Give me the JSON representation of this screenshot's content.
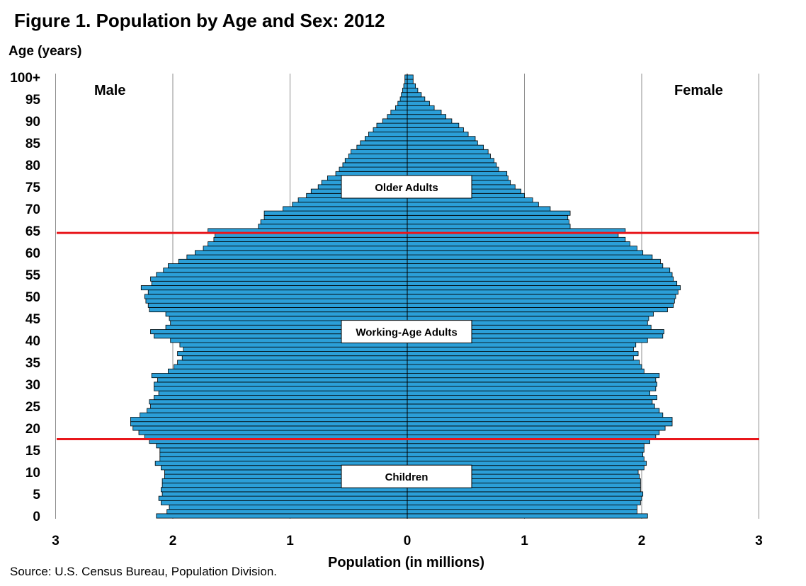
{
  "title": "Figure 1. Population by Age and Sex: 2012",
  "source": "Source: U.S. Census Bureau, Population Division.",
  "colors": {
    "bar": "#2b9fd8",
    "bar_stroke": "#000000",
    "divider": "#e8161b",
    "grid": "#8c8c8c"
  },
  "chart_data": {
    "type": "bar",
    "orientation": "horizontal",
    "subtype": "population-pyramid",
    "title": "Figure 1. Population by Age and Sex: 2012",
    "xlabel": "Population (in millions)",
    "ylabel": "Age (years)",
    "xlim": [
      -3,
      3
    ],
    "ylim": [
      0,
      100
    ],
    "grid": "vertical gridlines at 1-million intervals",
    "x_ticks": [
      "3",
      "2",
      "1",
      "0",
      "1",
      "2",
      "3"
    ],
    "y_ticks": [
      "0",
      "5",
      "10",
      "15",
      "20",
      "25",
      "30",
      "35",
      "40",
      "45",
      "50",
      "55",
      "60",
      "65",
      "70",
      "75",
      "80",
      "85",
      "90",
      "95",
      "100+"
    ],
    "side_labels": {
      "left": "Male",
      "right": "Female"
    },
    "age_groups": [
      {
        "label": "Older Adults",
        "age": 75
      },
      {
        "label": "Working-Age Adults",
        "age": 42
      },
      {
        "label": "Children",
        "age": 9
      }
    ],
    "reference_lines": [
      64.5,
      17.5
    ],
    "ages": [
      0,
      1,
      2,
      3,
      4,
      5,
      6,
      7,
      8,
      9,
      10,
      11,
      12,
      13,
      14,
      15,
      16,
      17,
      18,
      19,
      20,
      21,
      22,
      23,
      24,
      25,
      26,
      27,
      28,
      29,
      30,
      31,
      32,
      33,
      34,
      35,
      36,
      37,
      38,
      39,
      40,
      41,
      42,
      43,
      44,
      45,
      46,
      47,
      48,
      49,
      50,
      51,
      52,
      53,
      54,
      55,
      56,
      57,
      58,
      59,
      60,
      61,
      62,
      63,
      64,
      65,
      66,
      67,
      68,
      69,
      70,
      71,
      72,
      73,
      74,
      75,
      76,
      77,
      78,
      79,
      80,
      81,
      82,
      83,
      84,
      85,
      86,
      87,
      88,
      89,
      90,
      91,
      92,
      93,
      94,
      95,
      96,
      97,
      98,
      99,
      100
    ],
    "series": [
      {
        "name": "Male",
        "values": [
          2.14,
          2.05,
          2.03,
          2.1,
          2.12,
          2.09,
          2.1,
          2.09,
          2.09,
          2.07,
          2.07,
          2.1,
          2.15,
          2.11,
          2.11,
          2.11,
          2.14,
          2.2,
          2.24,
          2.29,
          2.34,
          2.36,
          2.36,
          2.28,
          2.22,
          2.19,
          2.2,
          2.16,
          2.12,
          2.16,
          2.16,
          2.13,
          2.18,
          2.04,
          1.99,
          1.96,
          1.92,
          1.96,
          1.91,
          1.94,
          2.02,
          2.16,
          2.19,
          2.06,
          2.02,
          2.03,
          2.06,
          2.2,
          2.21,
          2.23,
          2.24,
          2.21,
          2.27,
          2.18,
          2.19,
          2.14,
          2.08,
          2.04,
          1.95,
          1.88,
          1.81,
          1.74,
          1.7,
          1.65,
          1.64,
          1.7,
          1.27,
          1.25,
          1.22,
          1.22,
          1.06,
          0.98,
          0.93,
          0.86,
          0.82,
          0.76,
          0.73,
          0.68,
          0.61,
          0.58,
          0.55,
          0.53,
          0.5,
          0.48,
          0.43,
          0.4,
          0.36,
          0.33,
          0.29,
          0.26,
          0.21,
          0.17,
          0.14,
          0.1,
          0.08,
          0.06,
          0.05,
          0.04,
          0.03,
          0.02,
          0.02
        ]
      },
      {
        "name": "Female",
        "values": [
          2.05,
          1.96,
          1.96,
          1.99,
          2.0,
          2.01,
          1.99,
          1.99,
          1.99,
          1.98,
          1.97,
          2.02,
          2.04,
          2.02,
          2.01,
          2.02,
          2.02,
          2.07,
          2.12,
          2.15,
          2.2,
          2.26,
          2.26,
          2.18,
          2.15,
          2.11,
          2.09,
          2.13,
          2.07,
          2.12,
          2.13,
          2.12,
          2.15,
          2.02,
          2.0,
          1.98,
          1.93,
          1.97,
          1.93,
          1.95,
          2.05,
          2.18,
          2.19,
          2.08,
          2.05,
          2.06,
          2.1,
          2.22,
          2.27,
          2.28,
          2.29,
          2.31,
          2.33,
          2.3,
          2.27,
          2.26,
          2.24,
          2.18,
          2.16,
          2.09,
          2.01,
          1.96,
          1.9,
          1.86,
          1.8,
          1.86,
          1.39,
          1.38,
          1.37,
          1.39,
          1.22,
          1.12,
          1.07,
          1.0,
          0.97,
          0.92,
          0.88,
          0.86,
          0.85,
          0.78,
          0.76,
          0.74,
          0.71,
          0.69,
          0.65,
          0.6,
          0.58,
          0.52,
          0.48,
          0.44,
          0.38,
          0.33,
          0.29,
          0.23,
          0.19,
          0.15,
          0.12,
          0.09,
          0.07,
          0.05,
          0.05
        ]
      }
    ]
  }
}
